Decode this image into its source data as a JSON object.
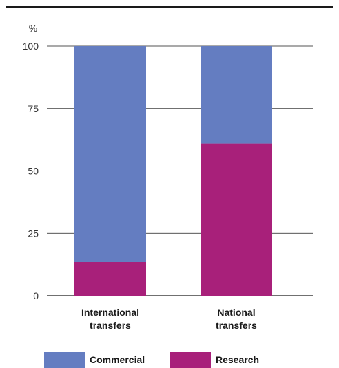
{
  "chart_data": {
    "type": "bar",
    "stacked": true,
    "categories": [
      "International transfers",
      "National transfers"
    ],
    "category_lines": [
      [
        "International",
        "transfers"
      ],
      [
        "National",
        "transfers"
      ]
    ],
    "series": [
      {
        "name": "Research",
        "color": "#a8207a",
        "values": [
          13.5,
          61
        ]
      },
      {
        "name": "Commercial",
        "color": "#647dc1",
        "values": [
          86.5,
          39
        ]
      }
    ],
    "y_unit": "%",
    "ylim": [
      0,
      100
    ],
    "yticks": [
      0,
      25,
      50,
      75,
      100
    ],
    "grid": true,
    "legend_position": "bottom",
    "legend_order": [
      "Commercial",
      "Research"
    ],
    "axis_color": "#1a1a1a"
  }
}
